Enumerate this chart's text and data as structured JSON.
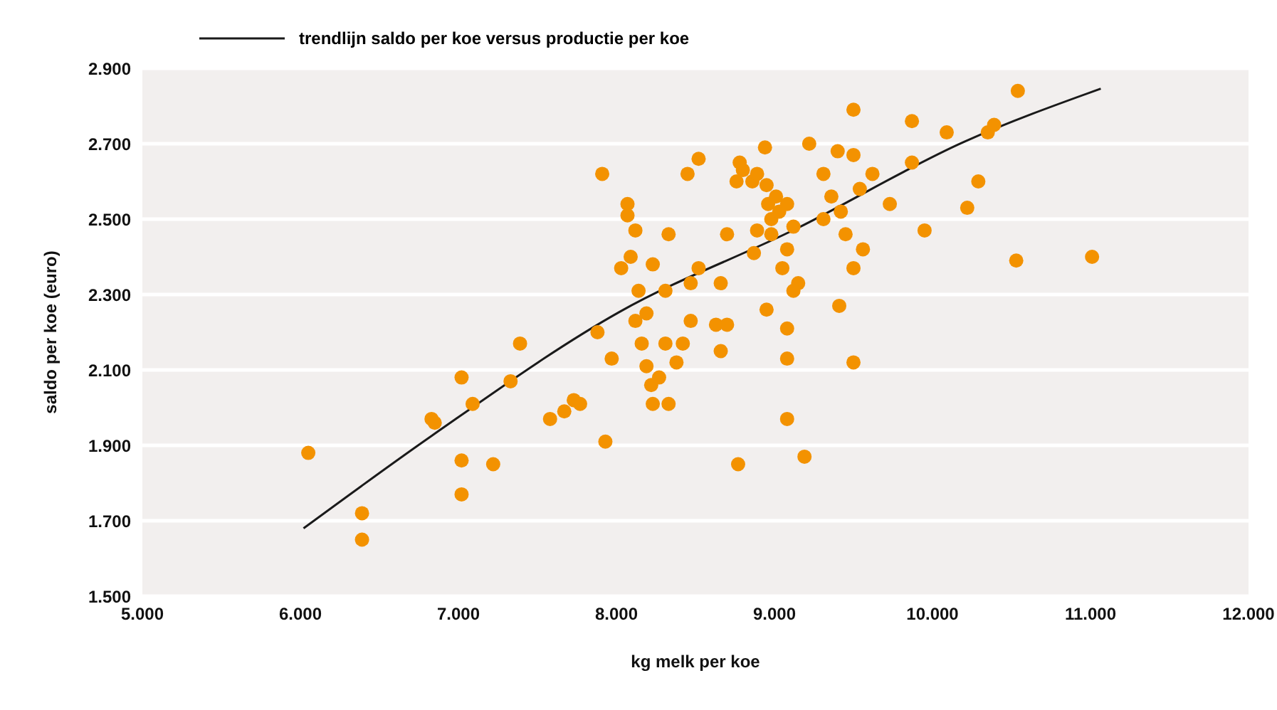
{
  "chart_data": {
    "type": "scatter",
    "xlabel": "kg melk per koe",
    "ylabel": "saldo per koe (euro)",
    "xlim": [
      5000,
      12000
    ],
    "xticks": [
      {
        "value": 5000,
        "label": "5.000"
      },
      {
        "value": 6000,
        "label": "6.000"
      },
      {
        "value": 7000,
        "label": "7.000"
      },
      {
        "value": 8000,
        "label": "8.000"
      },
      {
        "value": 9000,
        "label": "9.000"
      },
      {
        "value": 10000,
        "label": "10.000"
      },
      {
        "value": 11000,
        "label": "11.000"
      },
      {
        "value": 12000,
        "label": "12.000"
      }
    ],
    "ylim": [
      1500,
      2900
    ],
    "yticks": [
      {
        "value": 1500,
        "label": "1.500"
      },
      {
        "value": 1700,
        "label": "1.700"
      },
      {
        "value": 1900,
        "label": "1.900"
      },
      {
        "value": 2100,
        "label": "2.100"
      },
      {
        "value": 2300,
        "label": "2.300"
      },
      {
        "value": 2500,
        "label": "2.500"
      },
      {
        "value": 2700,
        "label": "2.700"
      },
      {
        "value": 2900,
        "label": "2.900"
      }
    ],
    "grid": "y",
    "legend": "top left",
    "marker": "circle",
    "series": [
      {
        "color": "#f39200",
        "x": [
          6050,
          6390,
          6390,
          7020,
          7090,
          7020,
          7020,
          7220,
          7390,
          7330,
          6830,
          6850,
          7580,
          7670,
          7730,
          7770,
          7930,
          7970,
          7880,
          7910,
          8070,
          8070,
          8120,
          8030,
          8140,
          8090,
          8120,
          8190,
          8230,
          8330,
          8310,
          8160,
          8190,
          8220,
          8270,
          8230,
          8330,
          8310,
          8380,
          8420,
          8450,
          8520,
          8470,
          8520,
          8470,
          8630,
          8660,
          8700,
          8660,
          8700,
          8760,
          8800,
          8780,
          8860,
          8870,
          8890,
          8890,
          8940,
          8950,
          8960,
          8980,
          8980,
          9010,
          9030,
          9080,
          9080,
          9120,
          9050,
          9080,
          9080,
          9150,
          8770,
          9080,
          9190,
          9220,
          9310,
          9360,
          9310,
          9420,
          9400,
          9500,
          9540,
          9450,
          9500,
          9560,
          9410,
          9500,
          9620,
          9730,
          9500,
          9870,
          10090,
          10350,
          10390,
          10540,
          10530,
          9950,
          10220,
          10290,
          9870,
          11010,
          9120,
          8950
        ],
        "values": [
          1880,
          1720,
          1650,
          2080,
          2010,
          1860,
          1770,
          1850,
          2170,
          2070,
          1970,
          1960,
          1970,
          1990,
          2020,
          2010,
          1910,
          2130,
          2200,
          2620,
          2540,
          2510,
          2470,
          2370,
          2310,
          2400,
          2230,
          2250,
          2380,
          2460,
          2310,
          2170,
          2110,
          2060,
          2080,
          2010,
          2010,
          2170,
          2120,
          2170,
          2620,
          2660,
          2330,
          2370,
          2230,
          2220,
          2330,
          2460,
          2150,
          2220,
          2600,
          2630,
          2650,
          2600,
          2410,
          2470,
          2620,
          2690,
          2590,
          2540,
          2500,
          2460,
          2560,
          2520,
          2540,
          2420,
          2480,
          2370,
          2210,
          2130,
          2330,
          1850,
          1970,
          1870,
          2700,
          2620,
          2560,
          2500,
          2520,
          2680,
          2670,
          2580,
          2460,
          2370,
          2420,
          2270,
          2120,
          2620,
          2540,
          2790,
          2760,
          2730,
          2730,
          2750,
          2840,
          2390,
          2470,
          2530,
          2600,
          2650,
          2400,
          2310,
          2260
        ]
      },
      {
        "type": "line",
        "name": "trendlijn saldo per koe versus productie per koe",
        "color": "#1a1a1a",
        "marker": "none",
        "line_style": "solid",
        "x": [
          6020,
          6830,
          8020,
          9140,
          10200,
          11065
        ],
        "values": [
          1680,
          1925,
          2254,
          2475,
          2705,
          2846
        ]
      }
    ]
  }
}
